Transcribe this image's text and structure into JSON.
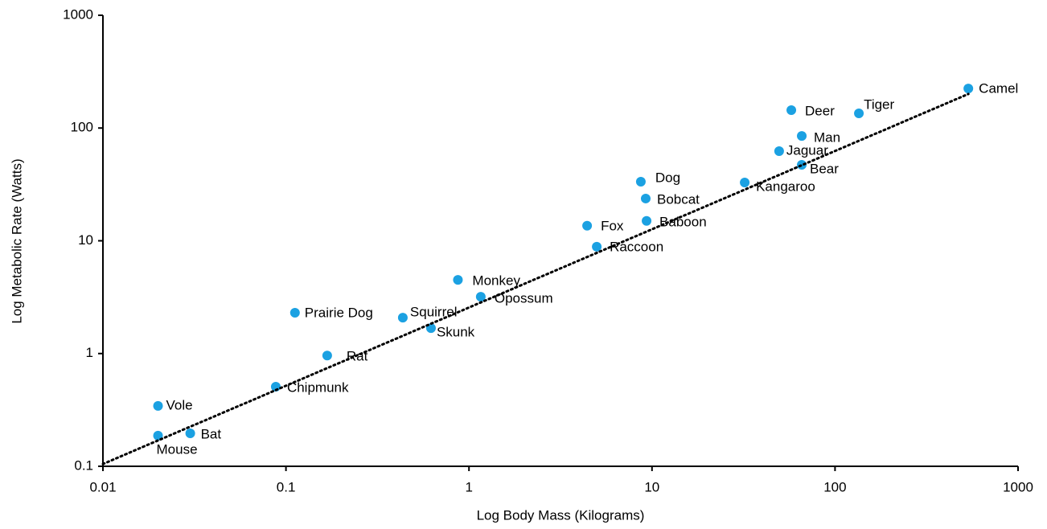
{
  "chart_data": {
    "type": "scatter",
    "x_label": "Log Body Mass (Kilograms)",
    "y_label": "Log Metabolic Rate (Watts)",
    "x_log": true,
    "y_log": true,
    "xlim": [
      0.01,
      1000
    ],
    "xticks": [
      0.01,
      0.1,
      1,
      10,
      100,
      1000
    ],
    "ylim": [
      0.1,
      1000
    ],
    "yticks": [
      0.1,
      1,
      10,
      100,
      1000
    ],
    "series": [
      {
        "color": "#1ba1e2",
        "labels": [
          "Mouse",
          "Bat",
          "Vole",
          "Chipmunk",
          "Rat",
          "Prairie Dog",
          "Squirrel",
          "Skunk",
          "Monkey",
          "Opossum",
          "Fox",
          "Raccoon",
          "Dog",
          "Bobcat",
          "Baboon",
          "Kangaroo",
          "Jaguar",
          "Deer",
          "Man",
          "Bear",
          "Tiger",
          "Camel"
        ],
        "x": [
          0.02,
          0.03,
          0.02,
          0.088,
          0.168,
          0.112,
          0.435,
          0.62,
          0.87,
          1.16,
          4.42,
          4.99,
          8.69,
          9.24,
          9.34,
          32.1,
          49.5,
          57.7,
          65.8,
          65.8,
          135,
          535
        ],
        "values": [
          0.187,
          0.196,
          0.343,
          0.508,
          0.96,
          2.3,
          2.08,
          1.68,
          4.5,
          3.19,
          13.6,
          8.86,
          33.4,
          23.7,
          15.0,
          32.9,
          62.4,
          144,
          85,
          47.2,
          135,
          224
        ]
      }
    ],
    "trendline": {
      "color": "#000000",
      "coefficient": 2.56,
      "exponent": 0.694,
      "x": [
        0.01,
        535
      ]
    }
  }
}
